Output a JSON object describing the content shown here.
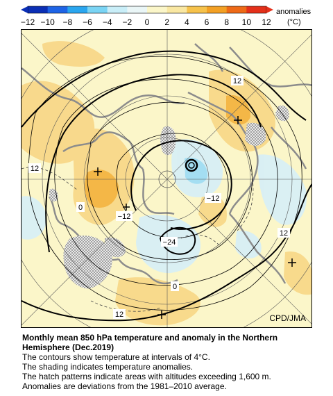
{
  "colorbar": {
    "ticks": [
      "−12",
      "−10",
      "−8",
      "−6",
      "−4",
      "−2",
      "0",
      "2",
      "4",
      "6",
      "8",
      "10",
      "12"
    ],
    "unit_name": "anomalies",
    "unit": "(°C)",
    "colors": [
      "#0b2fb5",
      "#1e64e6",
      "#2aa6ef",
      "#7ad4f4",
      "#c9eef8",
      "#eaf6f7",
      "#fbf6c9",
      "#f9e7a2",
      "#f6c24b",
      "#f3a024",
      "#ee6a17",
      "#e4301a"
    ]
  },
  "map": {
    "credit": "CPD/JMA",
    "contour_labels": [
      {
        "id": "ne-12",
        "text": "12"
      },
      {
        "id": "w-12",
        "text": "12"
      },
      {
        "id": "w-0",
        "text": "0"
      },
      {
        "id": "c-m12",
        "text": "−12"
      },
      {
        "id": "e-m12",
        "text": "−12"
      },
      {
        "id": "c-m24",
        "text": "−24"
      },
      {
        "id": "se-12",
        "text": "12"
      },
      {
        "id": "s-0",
        "text": "0"
      },
      {
        "id": "sw-12",
        "text": "12"
      }
    ]
  },
  "caption": {
    "title": "Monthly mean 850 hPa temperature and anomaly in the Northern Hemisphere (Dec.2019)",
    "lines": [
      "The contours show temperature at intervals of 4°C.",
      "The shading indicates temperature anomalies.",
      "The hatch patterns indicate areas with altitudes exceeding 1,600 m.",
      "Anomalies are deviations from the 1981–2010 average."
    ]
  }
}
